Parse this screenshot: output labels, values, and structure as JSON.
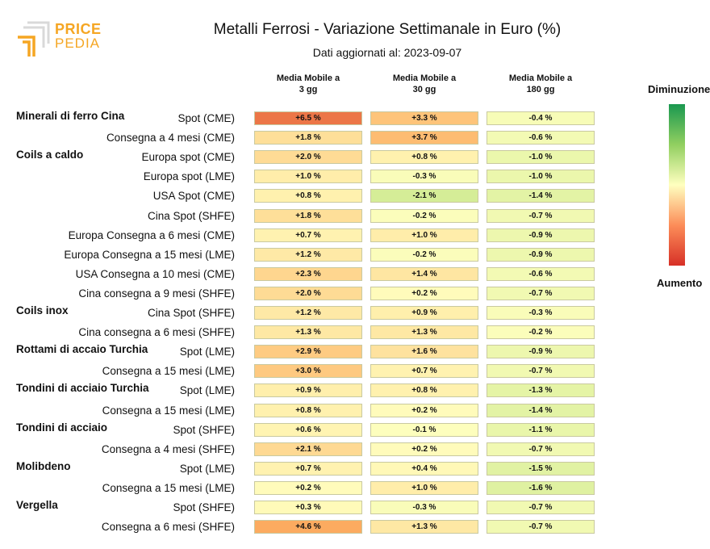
{
  "header": {
    "logo_line1": "PRICE",
    "logo_line2": "PEDIA",
    "title": "Metalli Ferrosi - Variazione Settimanale in Euro (%)",
    "subtitle": "Dati aggiornati al: 2023-09-07"
  },
  "legend": {
    "top_label": "Diminuzione",
    "bottom_label": "Aumento"
  },
  "chart_data": {
    "type": "heatmap",
    "title": "Metalli Ferrosi - Variazione Settimanale in Euro (%)",
    "columns": [
      "Media Mobile a\n3 gg",
      "Media Mobile a\n30 gg",
      "Media Mobile a\n180 gg"
    ],
    "rows": [
      {
        "group": "Minerali di ferro Cina",
        "label": "Spot (CME)",
        "values": [
          6.5,
          3.3,
          -0.4
        ],
        "text": [
          "+6.5 %",
          "+3.3 %",
          "-0.4 %"
        ]
      },
      {
        "group": "",
        "label": "Consegna a 4 mesi (CME)",
        "values": [
          1.8,
          3.7,
          -0.6
        ],
        "text": [
          "+1.8 %",
          "+3.7 %",
          "-0.6 %"
        ]
      },
      {
        "group": "Coils a caldo",
        "label": "Europa spot (CME)",
        "values": [
          2.0,
          0.8,
          -1.0
        ],
        "text": [
          "+2.0 %",
          "+0.8 %",
          "-1.0 %"
        ]
      },
      {
        "group": "",
        "label": "Europa spot (LME)",
        "values": [
          1.0,
          -0.3,
          -1.0
        ],
        "text": [
          "+1.0 %",
          "-0.3 %",
          "-1.0 %"
        ]
      },
      {
        "group": "",
        "label": "USA Spot (CME)",
        "values": [
          0.8,
          -2.1,
          -1.4
        ],
        "text": [
          "+0.8 %",
          "-2.1 %",
          "-1.4 %"
        ]
      },
      {
        "group": "",
        "label": "Cina Spot (SHFE)",
        "values": [
          1.8,
          -0.2,
          -0.7
        ],
        "text": [
          "+1.8 %",
          "-0.2 %",
          "-0.7 %"
        ]
      },
      {
        "group": "",
        "label": "Europa Consegna a 6 mesi (CME)",
        "values": [
          0.7,
          1.0,
          -0.9
        ],
        "text": [
          "+0.7 %",
          "+1.0 %",
          "-0.9 %"
        ]
      },
      {
        "group": "",
        "label": "Europa Consegna a 15 mesi (LME)",
        "values": [
          1.2,
          -0.2,
          -0.9
        ],
        "text": [
          "+1.2 %",
          "-0.2 %",
          "-0.9 %"
        ]
      },
      {
        "group": "",
        "label": "USA Consegna a 10 mesi (CME)",
        "values": [
          2.3,
          1.4,
          -0.6
        ],
        "text": [
          "+2.3 %",
          "+1.4 %",
          "-0.6 %"
        ]
      },
      {
        "group": "",
        "label": "Cina consegna a 9 mesi (SHFE)",
        "values": [
          2.0,
          0.2,
          -0.7
        ],
        "text": [
          "+2.0 %",
          "+0.2 %",
          "-0.7 %"
        ]
      },
      {
        "group": "Coils inox",
        "label": "Cina Spot (SHFE)",
        "values": [
          1.2,
          0.9,
          -0.3
        ],
        "text": [
          "+1.2 %",
          "+0.9 %",
          "-0.3 %"
        ]
      },
      {
        "group": "",
        "label": "Cina consegna a 6 mesi (SHFE)",
        "values": [
          1.3,
          1.3,
          -0.2
        ],
        "text": [
          "+1.3 %",
          "+1.3 %",
          "-0.2 %"
        ]
      },
      {
        "group": "Rottami di accaio Turchia",
        "label": "Spot (LME)",
        "values": [
          2.9,
          1.6,
          -0.9
        ],
        "text": [
          "+2.9 %",
          "+1.6 %",
          "-0.9 %"
        ]
      },
      {
        "group": "",
        "label": "Consegna a 15 mesi (LME)",
        "values": [
          3.0,
          0.7,
          -0.7
        ],
        "text": [
          "+3.0 %",
          "+0.7 %",
          "-0.7 %"
        ]
      },
      {
        "group": "Tondini di acciaio Turchia",
        "label": "Spot (LME)",
        "values": [
          0.9,
          0.8,
          -1.3
        ],
        "text": [
          "+0.9 %",
          "+0.8 %",
          "-1.3 %"
        ]
      },
      {
        "group": "",
        "label": "Consegna a 15 mesi (LME)",
        "values": [
          0.8,
          0.2,
          -1.4
        ],
        "text": [
          "+0.8 %",
          "+0.2 %",
          "-1.4 %"
        ]
      },
      {
        "group": "Tondini di acciaio",
        "label": "Spot (SHFE)",
        "values": [
          0.6,
          -0.1,
          -1.1
        ],
        "text": [
          "+0.6 %",
          "-0.1 %",
          "-1.1 %"
        ]
      },
      {
        "group": "",
        "label": "Consegna a 4 mesi (SHFE)",
        "values": [
          2.1,
          0.2,
          -0.7
        ],
        "text": [
          "+2.1 %",
          "+0.2 %",
          "-0.7 %"
        ]
      },
      {
        "group": "Molibdeno",
        "label": "Spot (LME)",
        "values": [
          0.7,
          0.4,
          -1.5
        ],
        "text": [
          "+0.7 %",
          "+0.4 %",
          "-1.5 %"
        ]
      },
      {
        "group": "",
        "label": "Consegna a 15 mesi (LME)",
        "values": [
          0.2,
          1.0,
          -1.6
        ],
        "text": [
          "+0.2 %",
          "+1.0 %",
          "-1.6 %"
        ]
      },
      {
        "group": "Vergella",
        "label": "Spot (SHFE)",
        "values": [
          0.3,
          -0.3,
          -0.7
        ],
        "text": [
          "+0.3 %",
          "-0.3 %",
          "-0.7 %"
        ]
      },
      {
        "group": "",
        "label": "Consegna a 6 mesi (SHFE)",
        "values": [
          4.6,
          1.3,
          -0.7
        ],
        "text": [
          "+4.6 %",
          "+1.3 %",
          "-0.7 %"
        ]
      }
    ],
    "color_scale": {
      "negative": "#1a9850",
      "neutral": "#ffffbf",
      "positive": "#d73027"
    },
    "legend_placement": "right"
  }
}
